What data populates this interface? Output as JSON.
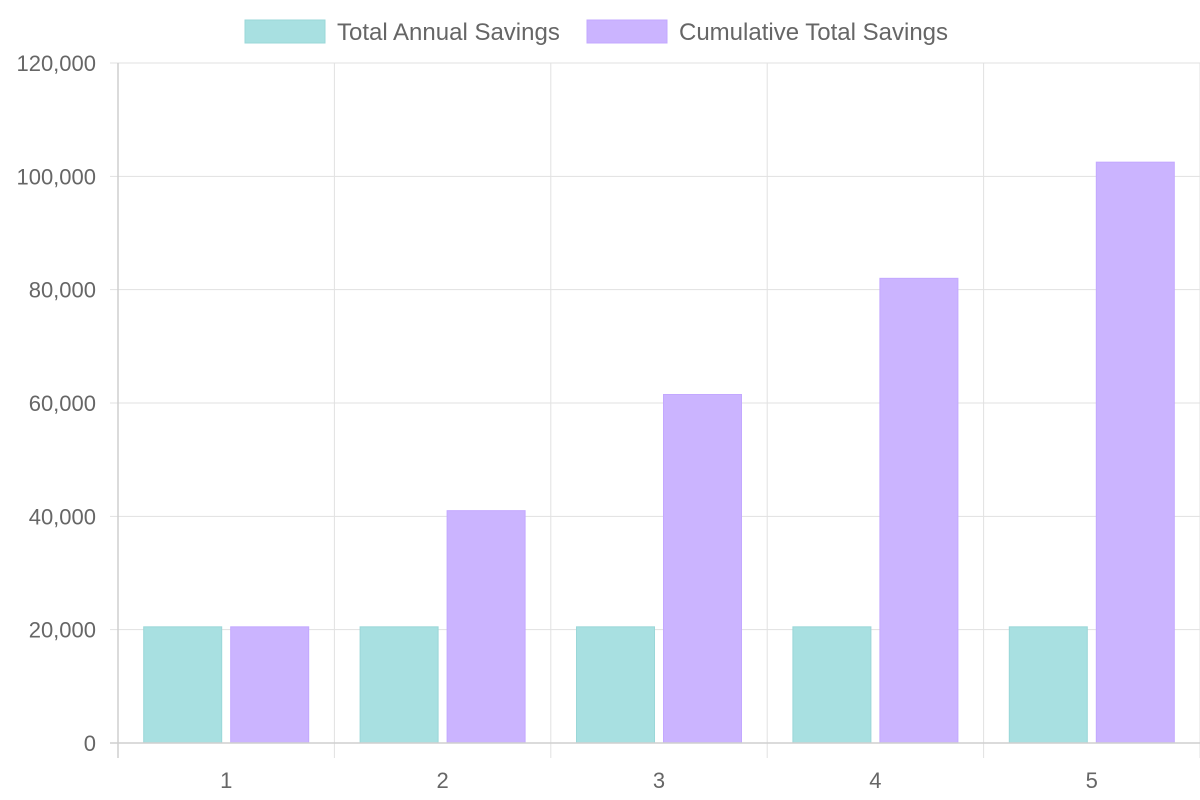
{
  "chart_data": {
    "type": "bar",
    "categories": [
      "1",
      "2",
      "3",
      "4",
      "5"
    ],
    "series": [
      {
        "name": "Total Annual Savings",
        "values": [
          20500,
          20500,
          20500,
          20500,
          20500
        ],
        "color": "#a8e0e1",
        "border_color": "#9ad7d8"
      },
      {
        "name": "Cumulative Total Savings",
        "values": [
          20500,
          41000,
          61500,
          82000,
          102500
        ],
        "color": "#cbb4ff",
        "border_color": "#c3a8ff"
      }
    ],
    "y_ticks": [
      "0",
      "20,000",
      "40,000",
      "60,000",
      "80,000",
      "100,000",
      "120,000"
    ],
    "ylim": [
      0,
      120000
    ],
    "title": "",
    "xlabel": "",
    "ylabel": "",
    "grid": true,
    "legend_position": "top"
  }
}
